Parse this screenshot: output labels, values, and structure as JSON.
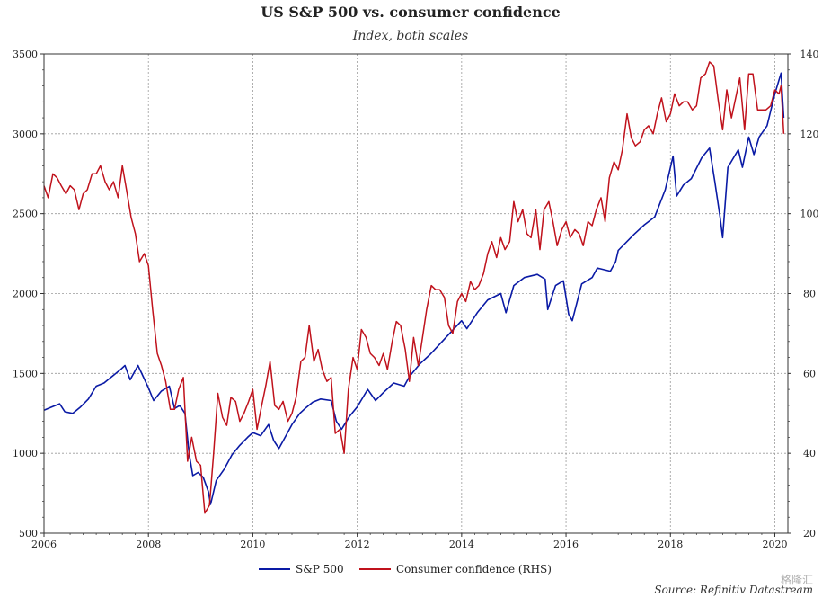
{
  "chart_data": {
    "type": "line",
    "title": "US S&P 500 vs. consumer confidence",
    "subtitle": "Index, both scales",
    "source": "Source: Refinitiv Datastream",
    "watermark": "格隆汇",
    "x_ticks": [
      "2006",
      "2008",
      "2010",
      "2012",
      "2014",
      "2016",
      "2018",
      "2020"
    ],
    "xlim": [
      2006.0,
      2020.25
    ],
    "left_axis": {
      "ylim": [
        500,
        3500
      ],
      "ticks": [
        "500",
        "1000",
        "1500",
        "2000",
        "2500",
        "3000",
        "3500"
      ]
    },
    "right_axis": {
      "ylim": [
        20,
        140
      ],
      "ticks": [
        "20",
        "40",
        "60",
        "80",
        "100",
        "120",
        "140"
      ]
    },
    "grid": true,
    "colors": {
      "sp500": "#0a1aa5",
      "confidence": "#c0121c"
    },
    "legend": [
      {
        "name": "S&P 500",
        "color": "#0a1aa5"
      },
      {
        "name": "Consumer confidence (RHS)",
        "color": "#c0121c"
      }
    ],
    "series": [
      {
        "name": "S&P 500",
        "axis": "left",
        "points": [
          [
            2006.0,
            1270
          ],
          [
            2006.15,
            1290
          ],
          [
            2006.3,
            1310
          ],
          [
            2006.4,
            1260
          ],
          [
            2006.55,
            1250
          ],
          [
            2006.7,
            1290
          ],
          [
            2006.85,
            1340
          ],
          [
            2007.0,
            1420
          ],
          [
            2007.15,
            1440
          ],
          [
            2007.3,
            1480
          ],
          [
            2007.45,
            1520
          ],
          [
            2007.55,
            1550
          ],
          [
            2007.65,
            1460
          ],
          [
            2007.8,
            1550
          ],
          [
            2007.9,
            1480
          ],
          [
            2008.0,
            1410
          ],
          [
            2008.1,
            1330
          ],
          [
            2008.25,
            1390
          ],
          [
            2008.4,
            1420
          ],
          [
            2008.5,
            1280
          ],
          [
            2008.6,
            1300
          ],
          [
            2008.7,
            1250
          ],
          [
            2008.78,
            1000
          ],
          [
            2008.85,
            860
          ],
          [
            2008.95,
            880
          ],
          [
            2009.05,
            850
          ],
          [
            2009.15,
            760
          ],
          [
            2009.19,
            680
          ],
          [
            2009.3,
            830
          ],
          [
            2009.45,
            900
          ],
          [
            2009.6,
            990
          ],
          [
            2009.75,
            1050
          ],
          [
            2009.9,
            1100
          ],
          [
            2010.0,
            1130
          ],
          [
            2010.15,
            1110
          ],
          [
            2010.3,
            1180
          ],
          [
            2010.4,
            1080
          ],
          [
            2010.5,
            1030
          ],
          [
            2010.6,
            1090
          ],
          [
            2010.75,
            1180
          ],
          [
            2010.9,
            1250
          ],
          [
            2011.0,
            1280
          ],
          [
            2011.15,
            1320
          ],
          [
            2011.3,
            1340
          ],
          [
            2011.5,
            1330
          ],
          [
            2011.6,
            1200
          ],
          [
            2011.7,
            1150
          ],
          [
            2011.85,
            1230
          ],
          [
            2012.0,
            1290
          ],
          [
            2012.2,
            1400
          ],
          [
            2012.35,
            1330
          ],
          [
            2012.5,
            1380
          ],
          [
            2012.7,
            1440
          ],
          [
            2012.9,
            1420
          ],
          [
            2013.0,
            1480
          ],
          [
            2013.2,
            1560
          ],
          [
            2013.4,
            1620
          ],
          [
            2013.6,
            1690
          ],
          [
            2013.8,
            1760
          ],
          [
            2014.0,
            1830
          ],
          [
            2014.1,
            1780
          ],
          [
            2014.3,
            1880
          ],
          [
            2014.5,
            1960
          ],
          [
            2014.75,
            2000
          ],
          [
            2014.85,
            1880
          ],
          [
            2015.0,
            2050
          ],
          [
            2015.2,
            2100
          ],
          [
            2015.45,
            2120
          ],
          [
            2015.6,
            2090
          ],
          [
            2015.65,
            1900
          ],
          [
            2015.8,
            2050
          ],
          [
            2015.95,
            2080
          ],
          [
            2016.05,
            1870
          ],
          [
            2016.12,
            1830
          ],
          [
            2016.3,
            2060
          ],
          [
            2016.5,
            2100
          ],
          [
            2016.6,
            2160
          ],
          [
            2016.85,
            2140
          ],
          [
            2016.95,
            2200
          ],
          [
            2017.0,
            2270
          ],
          [
            2017.3,
            2370
          ],
          [
            2017.5,
            2430
          ],
          [
            2017.7,
            2480
          ],
          [
            2017.9,
            2650
          ],
          [
            2018.05,
            2860
          ],
          [
            2018.12,
            2610
          ],
          [
            2018.25,
            2680
          ],
          [
            2018.4,
            2720
          ],
          [
            2018.6,
            2850
          ],
          [
            2018.75,
            2910
          ],
          [
            2018.85,
            2700
          ],
          [
            2018.95,
            2480
          ],
          [
            2019.0,
            2350
          ],
          [
            2019.1,
            2790
          ],
          [
            2019.3,
            2900
          ],
          [
            2019.38,
            2790
          ],
          [
            2019.5,
            2980
          ],
          [
            2019.6,
            2870
          ],
          [
            2019.7,
            2980
          ],
          [
            2019.85,
            3050
          ],
          [
            2020.0,
            3250
          ],
          [
            2020.12,
            3380
          ],
          [
            2020.17,
            3100
          ]
        ]
      },
      {
        "name": "Consumer confidence (RHS)",
        "axis": "right",
        "points": [
          [
            2006.0,
            107
          ],
          [
            2006.08,
            104
          ],
          [
            2006.17,
            110
          ],
          [
            2006.25,
            109
          ],
          [
            2006.33,
            107
          ],
          [
            2006.42,
            105
          ],
          [
            2006.5,
            107
          ],
          [
            2006.58,
            106
          ],
          [
            2006.67,
            101
          ],
          [
            2006.75,
            105
          ],
          [
            2006.83,
            106
          ],
          [
            2006.92,
            110
          ],
          [
            2007.0,
            110
          ],
          [
            2007.08,
            112
          ],
          [
            2007.17,
            108
          ],
          [
            2007.25,
            106
          ],
          [
            2007.33,
            108
          ],
          [
            2007.42,
            104
          ],
          [
            2007.5,
            112
          ],
          [
            2007.58,
            106
          ],
          [
            2007.67,
            99
          ],
          [
            2007.75,
            95
          ],
          [
            2007.83,
            88
          ],
          [
            2007.92,
            90
          ],
          [
            2008.0,
            87
          ],
          [
            2008.08,
            76
          ],
          [
            2008.17,
            65
          ],
          [
            2008.25,
            62
          ],
          [
            2008.33,
            58
          ],
          [
            2008.42,
            51
          ],
          [
            2008.5,
            51
          ],
          [
            2008.58,
            56
          ],
          [
            2008.67,
            59
          ],
          [
            2008.75,
            38
          ],
          [
            2008.83,
            44
          ],
          [
            2008.92,
            38
          ],
          [
            2009.0,
            37
          ],
          [
            2009.08,
            25
          ],
          [
            2009.17,
            27
          ],
          [
            2009.25,
            40
          ],
          [
            2009.33,
            55
          ],
          [
            2009.42,
            49
          ],
          [
            2009.5,
            47
          ],
          [
            2009.58,
            54
          ],
          [
            2009.67,
            53
          ],
          [
            2009.75,
            48
          ],
          [
            2009.83,
            50
          ],
          [
            2009.92,
            53
          ],
          [
            2010.0,
            56
          ],
          [
            2010.08,
            46
          ],
          [
            2010.17,
            52
          ],
          [
            2010.25,
            57
          ],
          [
            2010.33,
            63
          ],
          [
            2010.42,
            52
          ],
          [
            2010.5,
            51
          ],
          [
            2010.58,
            53
          ],
          [
            2010.67,
            48
          ],
          [
            2010.75,
            50
          ],
          [
            2010.83,
            54
          ],
          [
            2010.92,
            63
          ],
          [
            2011.0,
            64
          ],
          [
            2011.08,
            72
          ],
          [
            2011.17,
            63
          ],
          [
            2011.25,
            66
          ],
          [
            2011.33,
            61
          ],
          [
            2011.42,
            58
          ],
          [
            2011.5,
            59
          ],
          [
            2011.58,
            45
          ],
          [
            2011.67,
            46
          ],
          [
            2011.75,
            40
          ],
          [
            2011.83,
            56
          ],
          [
            2011.92,
            64
          ],
          [
            2012.0,
            61
          ],
          [
            2012.08,
            71
          ],
          [
            2012.17,
            69
          ],
          [
            2012.25,
            65
          ],
          [
            2012.33,
            64
          ],
          [
            2012.42,
            62
          ],
          [
            2012.5,
            65
          ],
          [
            2012.58,
            61
          ],
          [
            2012.67,
            68
          ],
          [
            2012.75,
            73
          ],
          [
            2012.83,
            72
          ],
          [
            2012.92,
            66
          ],
          [
            2013.0,
            58
          ],
          [
            2013.08,
            69
          ],
          [
            2013.17,
            62
          ],
          [
            2013.25,
            69
          ],
          [
            2013.33,
            76
          ],
          [
            2013.42,
            82
          ],
          [
            2013.5,
            81
          ],
          [
            2013.58,
            81
          ],
          [
            2013.67,
            79
          ],
          [
            2013.75,
            72
          ],
          [
            2013.83,
            70
          ],
          [
            2013.92,
            78
          ],
          [
            2014.0,
            80
          ],
          [
            2014.08,
            78
          ],
          [
            2014.17,
            83
          ],
          [
            2014.25,
            81
          ],
          [
            2014.33,
            82
          ],
          [
            2014.42,
            85
          ],
          [
            2014.5,
            90
          ],
          [
            2014.58,
            93
          ],
          [
            2014.67,
            89
          ],
          [
            2014.75,
            94
          ],
          [
            2014.83,
            91
          ],
          [
            2014.92,
            93
          ],
          [
            2015.0,
            103
          ],
          [
            2015.08,
            98
          ],
          [
            2015.17,
            101
          ],
          [
            2015.25,
            95
          ],
          [
            2015.33,
            94
          ],
          [
            2015.42,
            101
          ],
          [
            2015.5,
            91
          ],
          [
            2015.58,
            101
          ],
          [
            2015.67,
            103
          ],
          [
            2015.75,
            98
          ],
          [
            2015.83,
            92
          ],
          [
            2015.92,
            96
          ],
          [
            2016.0,
            98
          ],
          [
            2016.08,
            94
          ],
          [
            2016.17,
            96
          ],
          [
            2016.25,
            95
          ],
          [
            2016.33,
            92
          ],
          [
            2016.42,
            98
          ],
          [
            2016.5,
            97
          ],
          [
            2016.58,
            101
          ],
          [
            2016.67,
            104
          ],
          [
            2016.75,
            98
          ],
          [
            2016.83,
            109
          ],
          [
            2016.92,
            113
          ],
          [
            2017.0,
            111
          ],
          [
            2017.08,
            116
          ],
          [
            2017.17,
            125
          ],
          [
            2017.25,
            119
          ],
          [
            2017.33,
            117
          ],
          [
            2017.42,
            118
          ],
          [
            2017.5,
            121
          ],
          [
            2017.58,
            122
          ],
          [
            2017.67,
            120
          ],
          [
            2017.75,
            125
          ],
          [
            2017.83,
            129
          ],
          [
            2017.92,
            123
          ],
          [
            2018.0,
            125
          ],
          [
            2018.08,
            130
          ],
          [
            2018.17,
            127
          ],
          [
            2018.25,
            128
          ],
          [
            2018.33,
            128
          ],
          [
            2018.42,
            126
          ],
          [
            2018.5,
            127
          ],
          [
            2018.58,
            134
          ],
          [
            2018.67,
            135
          ],
          [
            2018.75,
            138
          ],
          [
            2018.83,
            137
          ],
          [
            2018.92,
            128
          ],
          [
            2019.0,
            121
          ],
          [
            2019.08,
            131
          ],
          [
            2019.17,
            124
          ],
          [
            2019.25,
            129
          ],
          [
            2019.33,
            134
          ],
          [
            2019.42,
            121
          ],
          [
            2019.5,
            135
          ],
          [
            2019.58,
            135
          ],
          [
            2019.67,
            126
          ],
          [
            2019.75,
            126
          ],
          [
            2019.83,
            126
          ],
          [
            2019.92,
            127
          ],
          [
            2020.0,
            131
          ],
          [
            2020.08,
            130
          ],
          [
            2020.12,
            132
          ],
          [
            2020.17,
            120
          ]
        ]
      }
    ]
  }
}
